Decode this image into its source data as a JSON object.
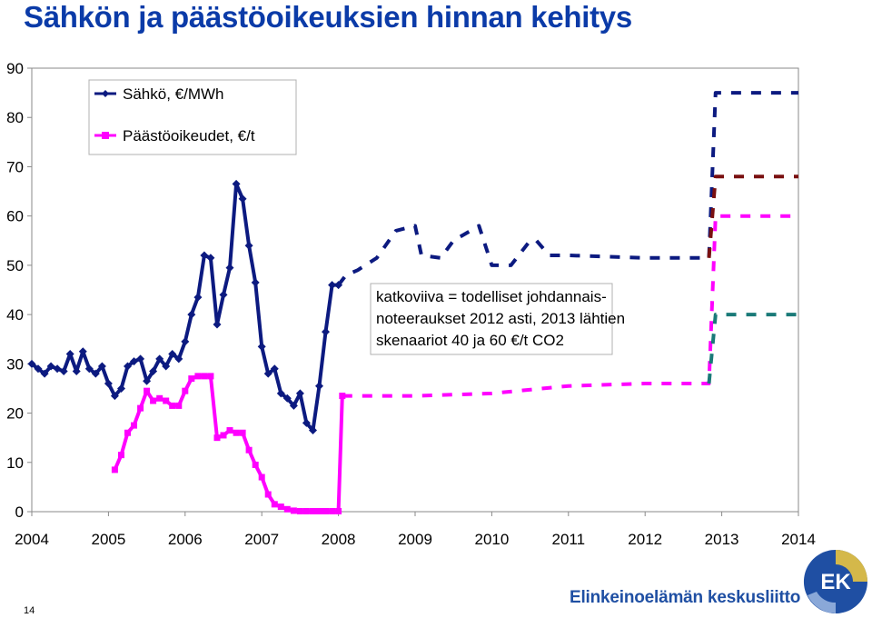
{
  "title": "Sähkön ja päästöoikeuksien hinnan kehitys",
  "page_number": "14",
  "brand": {
    "name": "Elinkeinoelämän keskusliitto",
    "logo_text": "EK"
  },
  "colors": {
    "electricity": "#0c1a80",
    "emissions": "#ff00ff",
    "scenario_40": "#1a7a78",
    "scenario_60": "#7a1010",
    "brand": "#1f4fa3"
  },
  "chart_data": {
    "type": "line",
    "title": "Sähkön ja päästöoikeuksien hinnan kehitys",
    "xlabel": "",
    "ylabel": "",
    "x_ticks": [
      "2004",
      "2005",
      "2006",
      "2007",
      "2008",
      "2009",
      "2010",
      "2011",
      "2012",
      "2013",
      "2014"
    ],
    "xlim": [
      2004,
      2014
    ],
    "y_ticks": [
      0,
      10,
      20,
      30,
      40,
      50,
      60,
      70,
      80,
      90
    ],
    "ylim": [
      0,
      90
    ],
    "grid": false,
    "legend_position": "top-left",
    "series": [
      {
        "name": "Sähkö, €/MWh",
        "key": "electricity",
        "style": "solid",
        "marker": "diamond",
        "points": [
          [
            2004.0,
            30.0
          ],
          [
            2004.083,
            29.0
          ],
          [
            2004.167,
            28.0
          ],
          [
            2004.25,
            29.5
          ],
          [
            2004.333,
            29.0
          ],
          [
            2004.417,
            28.5
          ],
          [
            2004.5,
            32.0
          ],
          [
            2004.583,
            28.5
          ],
          [
            2004.667,
            32.5
          ],
          [
            2004.75,
            29.0
          ],
          [
            2004.833,
            28.0
          ],
          [
            2004.917,
            29.5
          ],
          [
            2005.0,
            26.0
          ],
          [
            2005.083,
            23.5
          ],
          [
            2005.167,
            25.0
          ],
          [
            2005.25,
            29.5
          ],
          [
            2005.333,
            30.5
          ],
          [
            2005.417,
            31.0
          ],
          [
            2005.5,
            26.5
          ],
          [
            2005.583,
            28.5
          ],
          [
            2005.667,
            31.0
          ],
          [
            2005.75,
            29.5
          ],
          [
            2005.833,
            32.0
          ],
          [
            2005.917,
            31.0
          ],
          [
            2006.0,
            34.5
          ],
          [
            2006.083,
            40.0
          ],
          [
            2006.167,
            43.5
          ],
          [
            2006.25,
            52.0
          ],
          [
            2006.333,
            51.5
          ],
          [
            2006.417,
            38.0
          ],
          [
            2006.5,
            44.0
          ],
          [
            2006.583,
            49.5
          ],
          [
            2006.667,
            66.5
          ],
          [
            2006.75,
            63.5
          ],
          [
            2006.833,
            54.0
          ],
          [
            2006.917,
            46.5
          ],
          [
            2007.0,
            33.5
          ],
          [
            2007.083,
            28.0
          ],
          [
            2007.167,
            29.0
          ],
          [
            2007.25,
            24.0
          ],
          [
            2007.333,
            23.0
          ],
          [
            2007.417,
            21.5
          ],
          [
            2007.5,
            24.0
          ],
          [
            2007.583,
            18.0
          ],
          [
            2007.667,
            16.5
          ],
          [
            2007.75,
            25.5
          ],
          [
            2007.833,
            36.5
          ],
          [
            2007.917,
            46.0
          ],
          [
            2008.0,
            46.0
          ]
        ]
      },
      {
        "name": "Päästöoikeudet, €/t",
        "key": "emissions",
        "style": "solid",
        "marker": "square",
        "points": [
          [
            2005.083,
            8.5
          ],
          [
            2005.167,
            11.5
          ],
          [
            2005.25,
            16.0
          ],
          [
            2005.333,
            17.5
          ],
          [
            2005.417,
            21.0
          ],
          [
            2005.5,
            24.5
          ],
          [
            2005.583,
            22.5
          ],
          [
            2005.667,
            23.0
          ],
          [
            2005.75,
            22.5
          ],
          [
            2005.833,
            21.5
          ],
          [
            2005.917,
            21.5
          ],
          [
            2006.0,
            24.5
          ],
          [
            2006.083,
            27.0
          ],
          [
            2006.167,
            27.5
          ],
          [
            2006.25,
            27.5
          ],
          [
            2006.333,
            27.5
          ],
          [
            2006.417,
            15.0
          ],
          [
            2006.5,
            15.5
          ],
          [
            2006.583,
            16.5
          ],
          [
            2006.667,
            16.0
          ],
          [
            2006.75,
            16.0
          ],
          [
            2006.833,
            12.5
          ],
          [
            2006.917,
            9.5
          ],
          [
            2007.0,
            7.0
          ],
          [
            2007.083,
            3.5
          ],
          [
            2007.167,
            1.5
          ],
          [
            2007.25,
            1.0
          ],
          [
            2007.333,
            0.5
          ],
          [
            2007.417,
            0.2
          ],
          [
            2007.5,
            0.1
          ],
          [
            2007.583,
            0.1
          ],
          [
            2007.667,
            0.1
          ],
          [
            2007.75,
            0.1
          ],
          [
            2007.833,
            0.1
          ],
          [
            2007.917,
            0.1
          ],
          [
            2008.0,
            0.1
          ],
          [
            2008.05,
            23.5
          ]
        ]
      },
      {
        "name": "",
        "key": "electricity",
        "style": "dashed",
        "marker": "none",
        "points": [
          [
            2008.0,
            46.0
          ],
          [
            2008.1,
            48.0
          ],
          [
            2008.25,
            49.0
          ],
          [
            2008.5,
            51.5
          ],
          [
            2008.75,
            57.0
          ],
          [
            2009.0,
            58.0
          ],
          [
            2009.083,
            52.0
          ],
          [
            2009.333,
            51.5
          ],
          [
            2009.5,
            55.0
          ],
          [
            2009.833,
            58.0
          ],
          [
            2010.0,
            50.0
          ],
          [
            2010.25,
            50.0
          ],
          [
            2010.5,
            55.0
          ],
          [
            2010.583,
            55.0
          ],
          [
            2010.75,
            52.0
          ],
          [
            2011.0,
            52.0
          ],
          [
            2012.0,
            51.5
          ],
          [
            2012.833,
            51.5
          ],
          [
            2012.92,
            85.0
          ],
          [
            2014.0,
            85.0
          ]
        ]
      },
      {
        "name": "",
        "key": "emissions",
        "style": "dashed",
        "marker": "none",
        "points": [
          [
            2008.05,
            23.5
          ],
          [
            2009.0,
            23.5
          ],
          [
            2010.0,
            24.0
          ],
          [
            2011.0,
            25.5
          ],
          [
            2012.0,
            26.0
          ],
          [
            2012.833,
            26.0
          ],
          [
            2012.92,
            60.0
          ],
          [
            2014.0,
            60.0
          ]
        ]
      },
      {
        "name": "",
        "key": "scenario_40",
        "style": "dashed",
        "marker": "none",
        "points": [
          [
            2012.833,
            26.0
          ],
          [
            2012.92,
            40.0
          ],
          [
            2014.0,
            40.0
          ]
        ]
      },
      {
        "name": "",
        "key": "scenario_60",
        "style": "dashed",
        "marker": "none",
        "points": [
          [
            2012.833,
            51.5
          ],
          [
            2012.92,
            68.0
          ],
          [
            2014.0,
            68.0
          ]
        ]
      }
    ],
    "annotations": [
      "katkoviiva = todelliset johdannais-",
      "noteeraukset 2012 asti, 2013 lähtien",
      "skenaariot 40 ja 60 €/t CO2"
    ]
  }
}
